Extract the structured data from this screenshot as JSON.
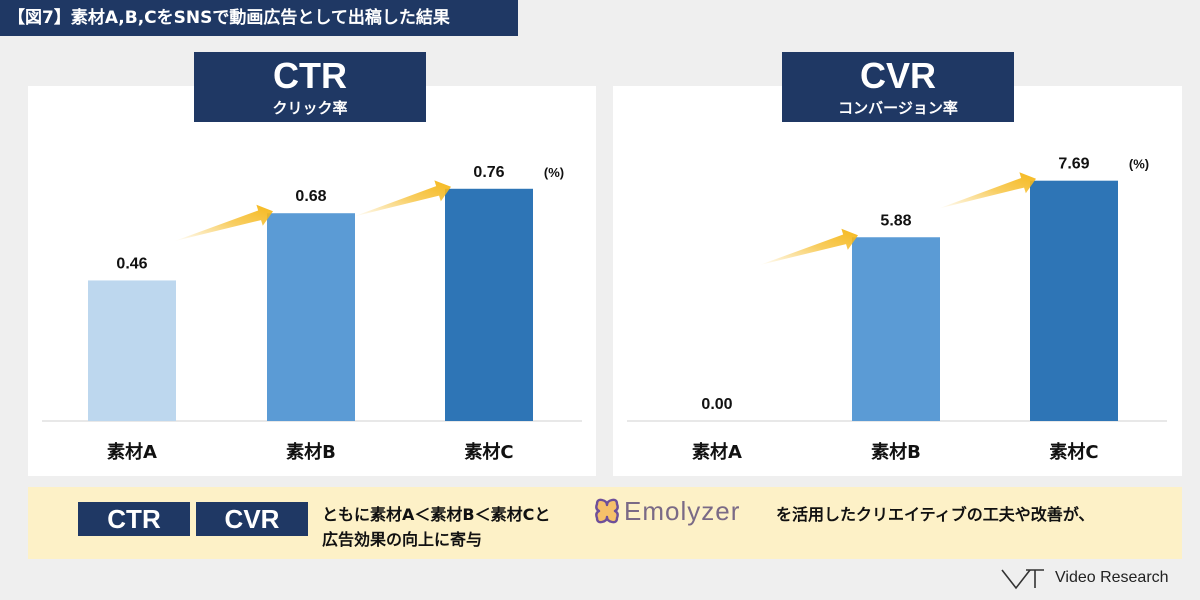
{
  "figure_title": "【図7】素材A,B,CをSNSで動画広告として出稿した結果",
  "colors": {
    "navy": "#1f3864",
    "bar_light": "#bdd7ee",
    "bar_mid": "#5b9bd5",
    "bar_dark": "#2e75b6",
    "arrow": "#f5b81c",
    "band": "#fdf1c7"
  },
  "chart_data": [
    {
      "type": "bar",
      "title": "CTR",
      "subtitle": "クリック率",
      "unit": "(%)",
      "categories": [
        "素材A",
        "素材B",
        "素材C"
      ],
      "values": [
        0.46,
        0.68,
        0.76
      ],
      "value_labels": [
        "0.46",
        "0.68",
        "0.76"
      ],
      "ylim": [
        0,
        0.9
      ],
      "grid": false,
      "legend": "none",
      "annotations": [
        "arrow-up-right between A and B",
        "arrow-up-right between B and C"
      ]
    },
    {
      "type": "bar",
      "title": "CVR",
      "subtitle": "コンバージョン率",
      "unit": "(%)",
      "categories": [
        "素材A",
        "素材B",
        "素材C"
      ],
      "values": [
        0.0,
        5.88,
        7.69
      ],
      "value_labels": [
        "0.00",
        "5.88",
        "7.69"
      ],
      "ylim": [
        0,
        8.8
      ],
      "grid": false,
      "legend": "none",
      "annotations": [
        "arrow-up-right between A and B",
        "arrow-up-right between B and C"
      ]
    }
  ],
  "summary": {
    "tag1": "CTR",
    "tag2": "CVR",
    "line1": "ともに素材A＜素材B＜素材Cと",
    "logo": "Emolyzer",
    "line1_tail": "を活用したクリエイティブの工夫や改善が、",
    "line2": "広告効果の向上に寄与"
  },
  "brand": "Video Research"
}
